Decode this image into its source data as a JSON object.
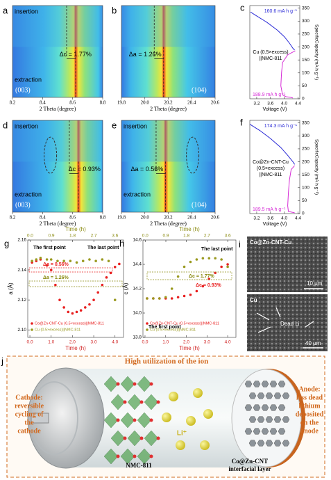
{
  "panels": {
    "a": {
      "letter": "a",
      "top": "insertion",
      "bottom": "extraction",
      "index": "(003)",
      "delta": "Δc = 1.77%",
      "xlabel": "2 Theta (degree)",
      "xlim": [
        8.2,
        8.8
      ],
      "xticks": [
        8.2,
        8.4,
        8.6,
        8.8
      ]
    },
    "b": {
      "letter": "b",
      "index": "(104)",
      "delta": "Δa = 1.26%",
      "xlabel": "2 Theta (degree)",
      "xlim": [
        19.8,
        20.6
      ],
      "xticks": [
        19.8,
        {
          "value": 20,
          "label": "20.0"
        },
        20.2,
        20.4,
        20.6
      ]
    },
    "c": {
      "letter": "c",
      "label_lines": [
        "Cu (0.5×excess)",
        "||NMC-811"
      ],
      "top_value": "160.6 mA h g⁻¹",
      "bottom_value": "188.9 mA h g⁻¹",
      "xlabel": "Voltage (V)",
      "ylabel": "SpecificCapacity (mA h g⁻¹)",
      "xlim": [
        3.0,
        4.45
      ],
      "xticks": [
        3.2,
        3.6,
        {
          "value": 4,
          "label": "4.0"
        },
        4.4
      ],
      "ylim": [
        0,
        360
      ],
      "yticks": [
        0,
        50,
        100,
        150,
        200,
        250,
        300,
        350
      ],
      "series": [
        {
          "color": "#2b2bd6",
          "x": [
            3.02,
            3.2,
            3.5,
            3.8,
            4.0,
            4.15,
            4.25,
            4.3
          ],
          "values": [
            335,
            320,
            295,
            265,
            240,
            215,
            195,
            188
          ]
        },
        {
          "color": "#d62bd6",
          "x": [
            4.32,
            4.1,
            3.95,
            3.92,
            3.9,
            3.95,
            4.05,
            4.2,
            4.25
          ],
          "values": [
            185,
            170,
            140,
            100,
            50,
            15,
            8,
            5,
            3
          ]
        }
      ]
    },
    "d": {
      "letter": "d",
      "top": "insertion",
      "bottom": "extraction",
      "index": "(003)",
      "delta": "Δc = 0.93%",
      "xlabel": "2 Theta (degree)",
      "xlim": [
        8.2,
        8.8
      ],
      "xticks": [
        8.2,
        8.4,
        8.6,
        8.8
      ]
    },
    "e": {
      "letter": "e",
      "top": "insertion",
      "bottom": "extraction",
      "index": "(104)",
      "delta": "Δa = 0.56%",
      "xlabel": "2 Theta (degree)",
      "xlim": [
        19.8,
        20.6
      ],
      "xticks": [
        19.8,
        {
          "value": 20,
          "label": "20.0"
        },
        20.2,
        20.4,
        20.6
      ]
    },
    "f": {
      "letter": "f",
      "label_lines": [
        "Co@Zn-CNT-Cu",
        "(0.5×excess)",
        "||NMC-811"
      ],
      "top_value": "174.3 mA h g⁻¹",
      "bottom_value": "189.5 mA h g⁻¹",
      "xlabel": "Voltage (V)",
      "ylabel": "SpecificCapacity (mA h g⁻¹)",
      "xlim": [
        3.0,
        4.45
      ],
      "xticks": [
        3.2,
        3.6,
        {
          "value": 4,
          "label": "4.0"
        },
        4.4
      ],
      "ylim": [
        0,
        360
      ],
      "yticks": [
        0,
        50,
        100,
        150,
        200,
        250,
        300,
        350
      ],
      "series": [
        {
          "color": "#2b2bd6",
          "x": [
            3.0,
            3.3,
            3.6,
            3.9,
            4.1,
            4.25,
            4.3
          ],
          "values": [
            345,
            320,
            290,
            255,
            225,
            200,
            190
          ]
        },
        {
          "color": "#d62bd6",
          "x": [
            4.3,
            4.2,
            4.15,
            4.12,
            4.1,
            4.12,
            4.3
          ],
          "values": [
            185,
            170,
            130,
            80,
            30,
            8,
            3
          ]
        }
      ]
    },
    "g": {
      "letter": "g",
      "ylabel": "a (Å)",
      "xlabel": "Time (h)",
      "top_xlabel": "Time (h)",
      "xlim": [
        -0.1,
        4.4
      ],
      "xticks": [
        {
          "value": 0,
          "label": "0.0"
        },
        {
          "value": 1,
          "label": "1.0"
        },
        {
          "value": 2,
          "label": "2.0"
        },
        {
          "value": 3,
          "label": "3.0"
        },
        {
          "value": 4,
          "label": "4.0"
        }
      ],
      "top_xlim": [
        -0.1,
        3.96
      ],
      "top_xticks": [
        {
          "value": 0,
          "label": "0.0"
        },
        0.9,
        1.8,
        2.7,
        3.6
      ],
      "ylim": [
        2.095,
        2.16
      ],
      "yticks": [
        {
          "value": 2.1,
          "label": "2.10"
        },
        {
          "value": 2.12,
          "label": "2.12"
        },
        {
          "value": 2.14,
          "label": "2.14"
        },
        {
          "value": 2.16,
          "label": "2.16"
        }
      ],
      "first": "The first point",
      "last": "The last point",
      "delta_red": "Δa = 0.56%",
      "delta_olive": "Δa = 1.26%",
      "series": [
        {
          "name": "Co@Zn-CNT-Cu (0.5×excess)||NMC-811",
          "color": "#e82020",
          "x": [
            0.1,
            0.3,
            0.5,
            0.8,
            1.0,
            1.2,
            1.4,
            1.6,
            1.8,
            2.0,
            2.2,
            2.4,
            2.6,
            2.8,
            3.0,
            3.2,
            3.4,
            3.6,
            3.8,
            4.0,
            4.2
          ],
          "values": [
            2.145,
            2.146,
            2.147,
            2.143,
            2.14,
            2.13,
            2.12,
            2.115,
            2.112,
            2.111,
            2.112,
            2.113,
            2.115,
            2.117,
            2.12,
            2.125,
            2.13,
            2.135,
            2.138,
            2.142,
            2.144
          ]
        },
        {
          "name": "Cu (0.5×excess)||NMC-811",
          "color": "#9a9a20",
          "x": [
            0.1,
            0.3,
            0.5,
            0.8,
            1.0,
            1.3,
            1.6,
            1.9,
            2.2,
            2.5,
            2.8,
            3.1,
            3.4,
            3.7,
            4.0
          ],
          "values": [
            2.146,
            2.147,
            2.148,
            2.147,
            2.147,
            2.146,
            2.146,
            2.146,
            2.145,
            2.146,
            2.147,
            2.146,
            2.147,
            2.146,
            2.12
          ]
        }
      ]
    },
    "h": {
      "letter": "h",
      "ylabel": "c (Å)",
      "xlabel": "Time (h)",
      "top_xlabel": "Time (h)",
      "xlim": [
        -0.1,
        4.4
      ],
      "xticks": [
        {
          "value": 0,
          "label": "0.0"
        },
        {
          "value": 1,
          "label": "1.0"
        },
        {
          "value": 2,
          "label": "2.0"
        },
        {
          "value": 3,
          "label": "3.0"
        },
        {
          "value": 4,
          "label": "4.0"
        }
      ],
      "top_xlim": [
        -0.1,
        3.96
      ],
      "top_xticks": [
        {
          "value": 0,
          "label": "0.0"
        },
        0.9,
        1.8,
        2.7,
        3.6
      ],
      "ylim": [
        13.8,
        14.6
      ],
      "yticks": [
        13.8,
        {
          "value": 14,
          "label": "14.0"
        },
        14.2,
        14.4,
        14.6
      ],
      "first": "The first point",
      "last": "The last point",
      "delta_red": "Δc = 0.93%",
      "delta_olive": "Δc = 1.77%",
      "series": [
        {
          "name": "Co@Zn-CNT-Cu (0.5×excess)||NMC-811",
          "color": "#e82020",
          "x": [
            0.1,
            0.4,
            0.7,
            1.0,
            1.3,
            1.6,
            1.9,
            2.2,
            2.5,
            2.8,
            3.1,
            3.4,
            3.7,
            4.0
          ],
          "values": [
            14.12,
            14.12,
            14.12,
            14.12,
            14.12,
            14.13,
            14.14,
            14.15,
            14.18,
            14.22,
            14.28,
            14.33,
            14.38,
            14.4
          ]
        },
        {
          "name": "Cu (0.5×excess)||NMC-811",
          "color": "#9a9a20",
          "x": [
            0.1,
            0.4,
            0.7,
            1.0,
            1.3,
            1.6,
            1.9,
            2.2,
            2.5,
            2.8,
            3.1,
            3.4,
            3.7,
            4.0
          ],
          "values": [
            14.12,
            14.12,
            14.12,
            14.13,
            14.2,
            14.3,
            14.38,
            14.42,
            14.44,
            14.45,
            14.45,
            14.45,
            14.44,
            14.38
          ]
        }
      ]
    },
    "i": {
      "letter": "i",
      "top_label": "Co@Zn-CNT-Cu",
      "top_scale": "10 μm",
      "bottom_label": "Cu",
      "dead": "Dead Li",
      "bottom_scale": "40 μm"
    },
    "j": {
      "letter": "j",
      "title": "High utilization of the ion",
      "cathode": [
        "Cathode:",
        "reversible",
        "cycling of",
        "the",
        "cathode"
      ],
      "anode": [
        "Anode:",
        "less dead",
        "lithium",
        "deposited",
        "on the",
        "anode"
      ],
      "nmc": "NMC-811",
      "layer": [
        "Co@Zn-CNT",
        "interfacial layer"
      ],
      "ion": "Li⁺"
    }
  }
}
